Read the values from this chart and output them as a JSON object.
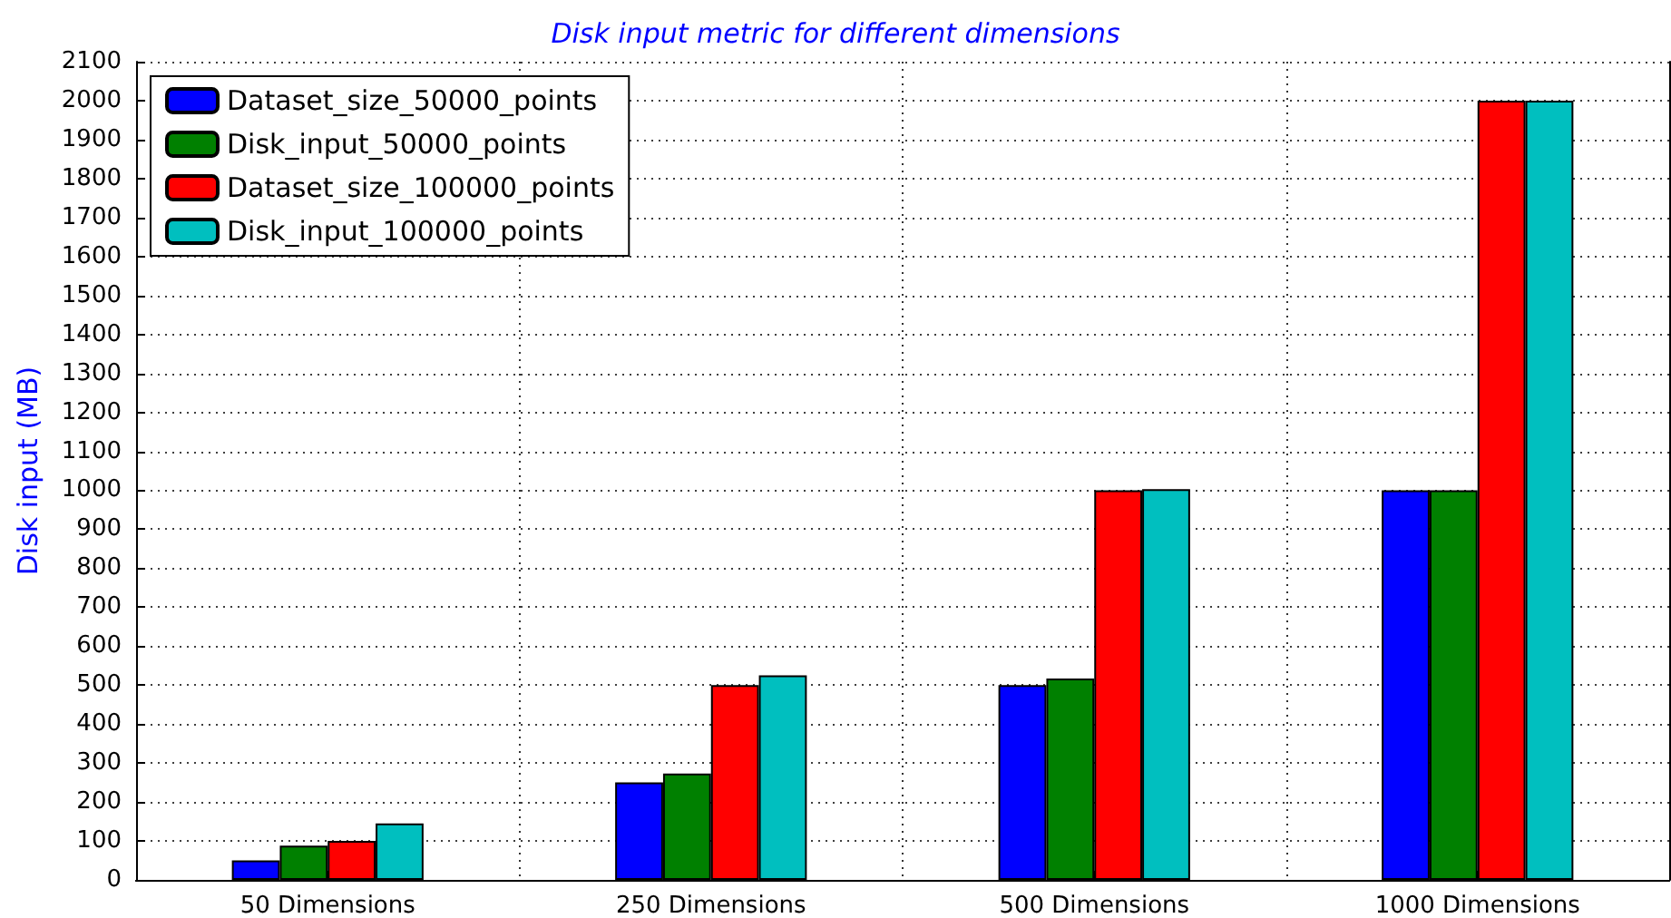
{
  "chart_data": {
    "type": "bar",
    "title": "Disk input metric for different dimensions",
    "ylabel": "Disk input (MB)",
    "categories": [
      "50 Dimensions",
      "250 Dimensions",
      "500 Dimensions",
      "1000 Dimensions"
    ],
    "series": [
      {
        "name": "Dataset_size_50000_points",
        "color": "#0000ff",
        "values": [
          50,
          250,
          500,
          1000
        ]
      },
      {
        "name": "Disk_input_50000_points",
        "color": "#008000",
        "values": [
          88,
          273,
          517,
          1000
        ]
      },
      {
        "name": "Dataset_size_100000_points",
        "color": "#ff0000",
        "values": [
          100,
          500,
          1000,
          2000
        ]
      },
      {
        "name": "Disk_input_100000_points",
        "color": "#00bfbf",
        "values": [
          145,
          525,
          1003,
          2000
        ]
      }
    ],
    "ylim": [
      0,
      2100
    ],
    "yticks": [
      0,
      100,
      200,
      300,
      400,
      500,
      600,
      700,
      800,
      900,
      1000,
      1100,
      1200,
      1300,
      1400,
      1500,
      1600,
      1700,
      1800,
      1900,
      2000,
      2100
    ],
    "grid": true,
    "legend": "top left"
  }
}
